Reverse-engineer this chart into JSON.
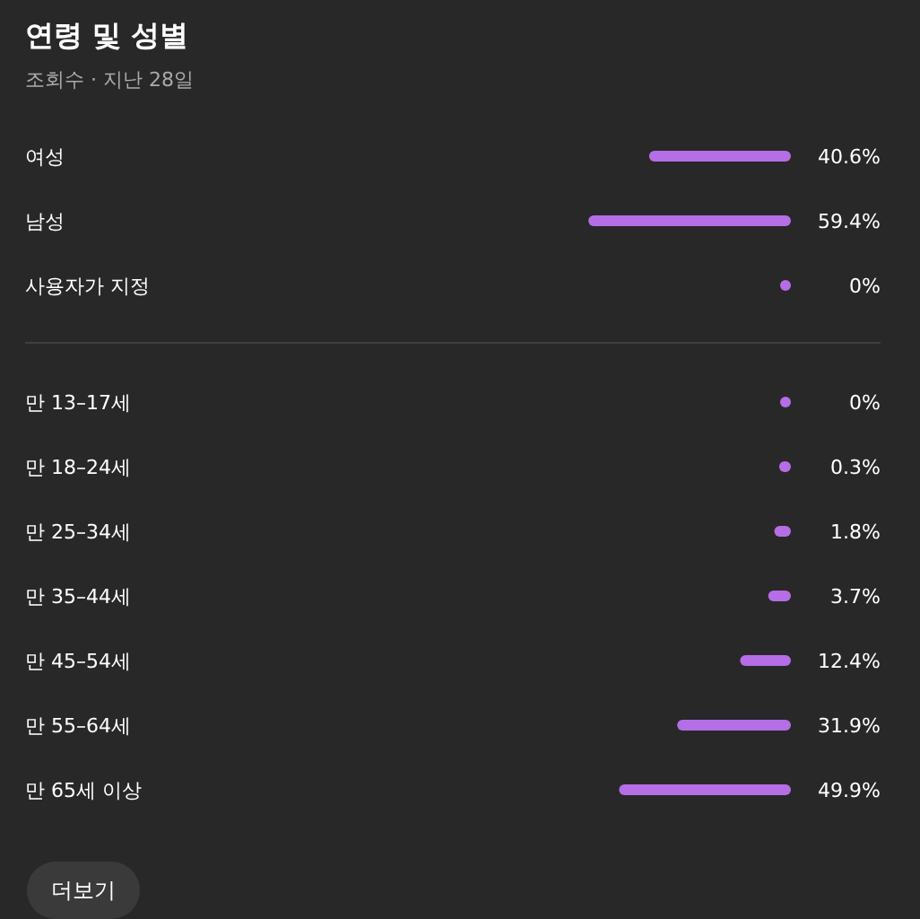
{
  "chart_data": [
    {
      "type": "bar",
      "orientation": "horizontal",
      "title": "연령 및 성별",
      "subtitle": "조회수 · 지난 28일",
      "categories": [
        "여성",
        "남성",
        "사용자가 지정"
      ],
      "values": [
        40.6,
        59.4,
        0
      ],
      "value_labels": [
        "40.6%",
        "59.4%",
        "0%"
      ],
      "color": "#b56ee6"
    },
    {
      "type": "bar",
      "orientation": "horizontal",
      "categories": [
        "만 13–17세",
        "만 18–24세",
        "만 25–34세",
        "만 35–44세",
        "만 45–54세",
        "만 55–64세",
        "만 65세 이상"
      ],
      "values": [
        0,
        0.3,
        1.8,
        3.7,
        12.4,
        31.9,
        49.9
      ],
      "value_labels": [
        "0%",
        "0.3%",
        "1.8%",
        "3.7%",
        "12.4%",
        "31.9%",
        "49.9%"
      ],
      "color": "#b56ee6",
      "annotations": [
        "더보기"
      ]
    }
  ]
}
